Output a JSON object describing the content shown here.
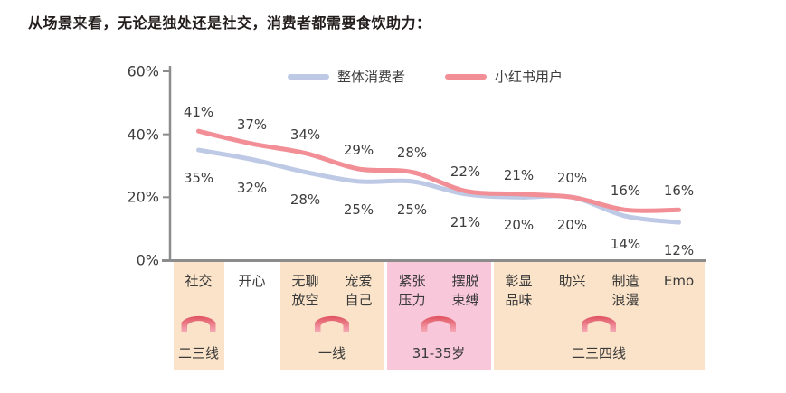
{
  "title": "从场景来看，无论是独处还是社交，消费者都需要食饮助力：",
  "chart_data": {
    "type": "line",
    "categories": [
      "社交",
      "开心",
      "无聊放空",
      "宠爱自己",
      "紧张压力",
      "摆脱束缚",
      "彰显品味",
      "助兴",
      "制造浪漫",
      "Emo"
    ],
    "categories_display": [
      "社交",
      "开心",
      "无聊\n放空",
      "宠爱\n自己",
      "紧张\n压力",
      "摆脱\n束缚",
      "彰显\n品味",
      "助兴",
      "制造\n浪漫",
      "Emo"
    ],
    "series": [
      {
        "name": "整体消费者",
        "color": "#bdc9e5",
        "values": [
          35,
          32,
          28,
          25,
          25,
          21,
          20,
          20,
          14,
          12
        ],
        "label_side": "below"
      },
      {
        "name": "小红书用户",
        "color": "#f28e95",
        "values": [
          41,
          37,
          34,
          29,
          28,
          22,
          21,
          20,
          16,
          16
        ],
        "label_side": "above"
      }
    ],
    "ylim": [
      0,
      60
    ],
    "yticks": [
      "60%",
      "40%",
      "20%",
      "0%"
    ],
    "legend_position": "top",
    "grid": false,
    "annotation_groups": [
      {
        "label": "二三线",
        "start": 0,
        "end": 0,
        "bg": "#fae3c8",
        "arrow": true
      },
      {
        "label": "一线",
        "start": 2,
        "end": 3,
        "bg": "#fae3c8",
        "arrow": true
      },
      {
        "label": "31-35岁",
        "start": 4,
        "end": 5,
        "bg": "#f8c7d9",
        "arrow": true
      },
      {
        "label": "二三四线",
        "start": 6,
        "end": 9,
        "bg": "#fae3c8",
        "arrow": true
      }
    ]
  },
  "colors": {
    "axis": "#8c8c8c",
    "label_text": "#3d3d3d",
    "title_text": "#221c1c",
    "arrow_top": "#e0525f",
    "arrow_bottom": "#f7aebb",
    "background": "#ffffff"
  },
  "icons": {
    "arrow": "chevron-up-icon"
  }
}
